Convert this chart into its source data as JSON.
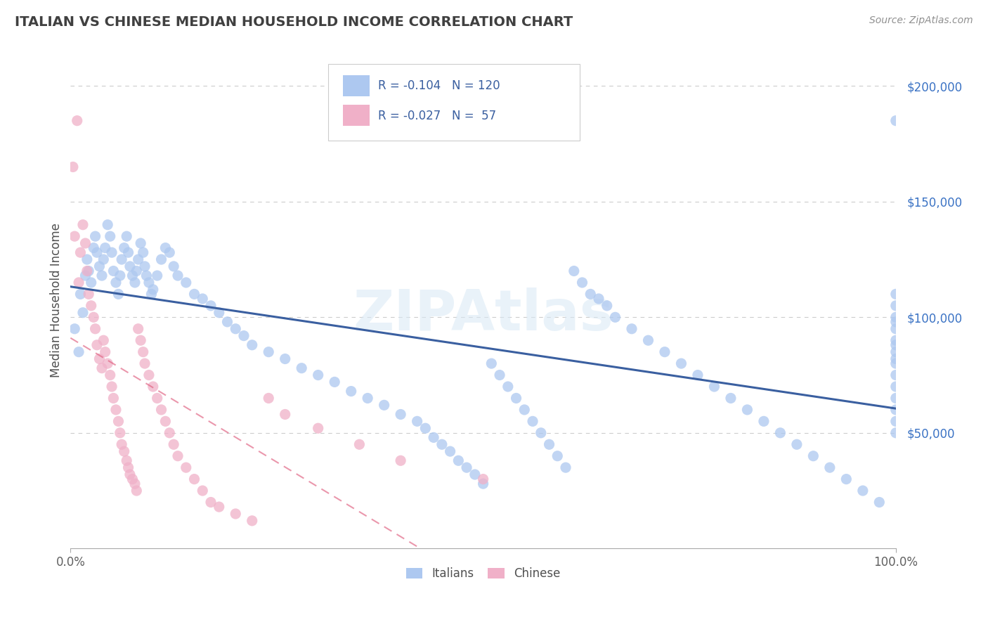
{
  "title": "ITALIAN VS CHINESE MEDIAN HOUSEHOLD INCOME CORRELATION CHART",
  "source": "Source: ZipAtlas.com",
  "ylabel": "Median Household Income",
  "ytick_values": [
    50000,
    100000,
    150000,
    200000
  ],
  "ylim": [
    0,
    215000
  ],
  "xlim": [
    0.0,
    100.0
  ],
  "watermark": "ZIPAtlas",
  "legend_italian_R": "-0.104",
  "legend_italian_N": "120",
  "legend_chinese_R": "-0.027",
  "legend_chinese_N": "57",
  "italian_color": "#adc8f0",
  "chinese_color": "#f0b0c8",
  "italian_line_color": "#3a5fa0",
  "chinese_line_color": "#e06080",
  "title_color": "#404040",
  "legend_text_color": "#3a5fa0",
  "background_color": "#ffffff",
  "dot_size": 120,
  "italian_x": [
    0.5,
    1.0,
    1.2,
    1.5,
    1.8,
    2.0,
    2.2,
    2.5,
    2.8,
    3.0,
    3.2,
    3.5,
    3.8,
    4.0,
    4.2,
    4.5,
    4.8,
    5.0,
    5.2,
    5.5,
    5.8,
    6.0,
    6.2,
    6.5,
    6.8,
    7.0,
    7.2,
    7.5,
    7.8,
    8.0,
    8.2,
    8.5,
    8.8,
    9.0,
    9.2,
    9.5,
    9.8,
    10.0,
    10.5,
    11.0,
    11.5,
    12.0,
    12.5,
    13.0,
    14.0,
    15.0,
    16.0,
    17.0,
    18.0,
    19.0,
    20.0,
    21.0,
    22.0,
    24.0,
    26.0,
    28.0,
    30.0,
    32.0,
    34.0,
    36.0,
    38.0,
    40.0,
    42.0,
    43.0,
    44.0,
    45.0,
    46.0,
    47.0,
    48.0,
    49.0,
    50.0,
    51.0,
    52.0,
    53.0,
    54.0,
    55.0,
    56.0,
    57.0,
    58.0,
    59.0,
    60.0,
    61.0,
    62.0,
    63.0,
    64.0,
    65.0,
    66.0,
    68.0,
    70.0,
    72.0,
    74.0,
    76.0,
    78.0,
    80.0,
    82.0,
    84.0,
    86.0,
    88.0,
    90.0,
    92.0,
    94.0,
    96.0,
    98.0,
    100.0,
    100.0,
    100.0,
    100.0,
    100.0,
    100.0,
    100.0,
    100.0,
    100.0,
    100.0,
    100.0,
    100.0,
    100.0,
    100.0,
    100.0,
    100.0,
    100.0
  ],
  "italian_y": [
    95000,
    85000,
    110000,
    102000,
    118000,
    125000,
    120000,
    115000,
    130000,
    135000,
    128000,
    122000,
    118000,
    125000,
    130000,
    140000,
    135000,
    128000,
    120000,
    115000,
    110000,
    118000,
    125000,
    130000,
    135000,
    128000,
    122000,
    118000,
    115000,
    120000,
    125000,
    132000,
    128000,
    122000,
    118000,
    115000,
    110000,
    112000,
    118000,
    125000,
    130000,
    128000,
    122000,
    118000,
    115000,
    110000,
    108000,
    105000,
    102000,
    98000,
    95000,
    92000,
    88000,
    85000,
    82000,
    78000,
    75000,
    72000,
    68000,
    65000,
    62000,
    58000,
    55000,
    52000,
    48000,
    45000,
    42000,
    38000,
    35000,
    32000,
    28000,
    80000,
    75000,
    70000,
    65000,
    60000,
    55000,
    50000,
    45000,
    40000,
    35000,
    120000,
    115000,
    110000,
    108000,
    105000,
    100000,
    95000,
    90000,
    85000,
    80000,
    75000,
    70000,
    65000,
    60000,
    55000,
    50000,
    45000,
    40000,
    35000,
    30000,
    25000,
    20000,
    185000,
    110000,
    105000,
    100000,
    98000,
    95000,
    90000,
    88000,
    85000,
    82000,
    80000,
    75000,
    70000,
    65000,
    60000,
    55000,
    50000
  ],
  "chinese_x": [
    0.3,
    0.5,
    0.8,
    1.0,
    1.2,
    1.5,
    1.8,
    2.0,
    2.2,
    2.5,
    2.8,
    3.0,
    3.2,
    3.5,
    3.8,
    4.0,
    4.2,
    4.5,
    4.8,
    5.0,
    5.2,
    5.5,
    5.8,
    6.0,
    6.2,
    6.5,
    6.8,
    7.0,
    7.2,
    7.5,
    7.8,
    8.0,
    8.2,
    8.5,
    8.8,
    9.0,
    9.5,
    10.0,
    10.5,
    11.0,
    11.5,
    12.0,
    12.5,
    13.0,
    14.0,
    15.0,
    16.0,
    17.0,
    18.0,
    20.0,
    22.0,
    24.0,
    26.0,
    30.0,
    35.0,
    40.0,
    50.0
  ],
  "chinese_y": [
    165000,
    135000,
    185000,
    115000,
    128000,
    140000,
    132000,
    120000,
    110000,
    105000,
    100000,
    95000,
    88000,
    82000,
    78000,
    90000,
    85000,
    80000,
    75000,
    70000,
    65000,
    60000,
    55000,
    50000,
    45000,
    42000,
    38000,
    35000,
    32000,
    30000,
    28000,
    25000,
    95000,
    90000,
    85000,
    80000,
    75000,
    70000,
    65000,
    60000,
    55000,
    50000,
    45000,
    40000,
    35000,
    30000,
    25000,
    20000,
    18000,
    15000,
    12000,
    65000,
    58000,
    52000,
    45000,
    38000,
    30000
  ]
}
